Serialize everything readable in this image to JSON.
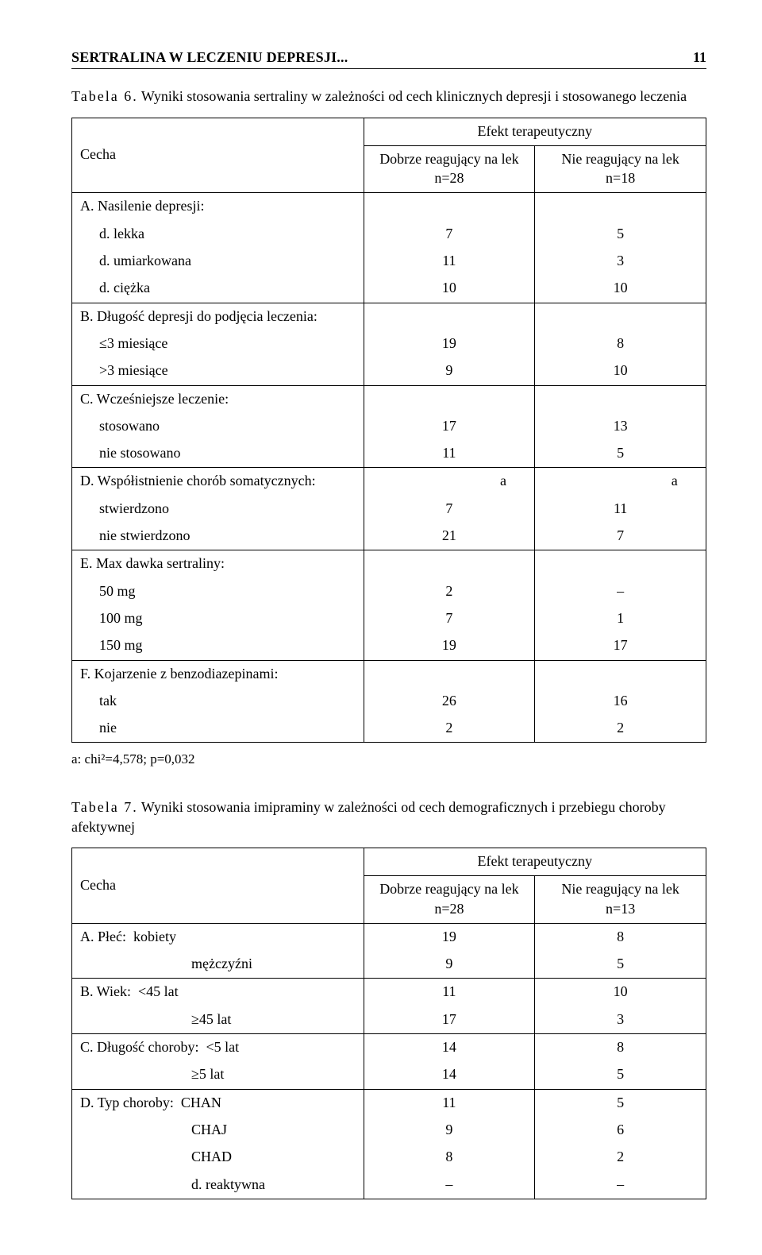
{
  "page": {
    "running_title": "SERTRALINA W LECZENIU DEPRESJI...",
    "number": "11"
  },
  "table6": {
    "label": "Tabela 6.",
    "caption": "Wyniki stosowania sertraliny w zależności od cech klinicznych depresji i stosowanego leczenia",
    "header_effect": "Efekt terapeutyczny",
    "col_feature": "Cecha",
    "col_good": "Dobrze reagujący na lek",
    "col_good_n": "n=28",
    "col_bad": "Nie reagujący na lek",
    "col_bad_n": "n=18",
    "sections": [
      {
        "title": "A. Nasilenie depresji:",
        "rows": [
          {
            "label": "d. lekka",
            "good": "7",
            "bad": "5"
          },
          {
            "label": "d. umiarkowana",
            "good": "11",
            "bad": "3"
          },
          {
            "label": "d. ciężka",
            "good": "10",
            "bad": "10"
          }
        ]
      },
      {
        "title": "B. Długość depresji do podjęcia leczenia:",
        "rows": [
          {
            "label": "≤3 miesiące",
            "good": "19",
            "bad": "8"
          },
          {
            "label": ">3 miesiące",
            "good": "9",
            "bad": "10"
          }
        ]
      },
      {
        "title": "C. Wcześniejsze leczenie:",
        "rows": [
          {
            "label": "stosowano",
            "good": "17",
            "bad": "13"
          },
          {
            "label": "nie stosowano",
            "good": "11",
            "bad": "5"
          }
        ]
      },
      {
        "title": "D. Współistnienie chorób somatycznych:",
        "title_good": "a",
        "title_bad": "a",
        "rows": [
          {
            "label": "stwierdzono",
            "good": "7",
            "bad": "11"
          },
          {
            "label": "nie stwierdzono",
            "good": "21",
            "bad": "7"
          }
        ]
      },
      {
        "title": "E. Max dawka sertraliny:",
        "rows": [
          {
            "label": "50 mg",
            "good": "2",
            "bad": "–"
          },
          {
            "label": "100 mg",
            "good": "7",
            "bad": "1"
          },
          {
            "label": "150 mg",
            "good": "19",
            "bad": "17"
          }
        ]
      },
      {
        "title": "F. Kojarzenie z benzodiazepinami:",
        "rows": [
          {
            "label": "tak",
            "good": "26",
            "bad": "16"
          },
          {
            "label": "nie",
            "good": "2",
            "bad": "2"
          }
        ]
      }
    ],
    "footnote": "a: chi²=4,578; p=0,032"
  },
  "table7": {
    "label": "Tabela 7.",
    "caption": "Wyniki stosowania imipraminy w zależności od cech demograficznych i przebiegu choroby afektywnej",
    "header_effect": "Efekt terapeutyczny",
    "col_feature": "Cecha",
    "col_good": "Dobrze reagujący na lek",
    "col_good_n": "n=28",
    "col_bad": "Nie reagujący na lek",
    "col_bad_n": "n=13",
    "sections": [
      {
        "title_inline": "A. Płeć:",
        "rows": [
          {
            "label": "kobiety",
            "good": "19",
            "bad": "8",
            "inline_with_title": true
          },
          {
            "label": "mężczyźni",
            "good": "9",
            "bad": "5"
          }
        ]
      },
      {
        "title_inline": "B. Wiek:",
        "rows": [
          {
            "label": "<45 lat",
            "good": "11",
            "bad": "10",
            "inline_with_title": true
          },
          {
            "label": "≥45 lat",
            "good": "17",
            "bad": "3"
          }
        ]
      },
      {
        "title_inline": "C. Długość choroby:",
        "rows": [
          {
            "label": "<5 lat",
            "good": "14",
            "bad": "8",
            "inline_with_title": true
          },
          {
            "label": "≥5 lat",
            "good": "14",
            "bad": "5"
          }
        ]
      },
      {
        "title_inline": "D. Typ choroby:",
        "rows": [
          {
            "label": "CHAN",
            "good": "11",
            "bad": "5",
            "inline_with_title": true
          },
          {
            "label": "CHAJ",
            "good": "9",
            "bad": "6"
          },
          {
            "label": "CHAD",
            "good": "8",
            "bad": "2"
          },
          {
            "label": "d. reaktywna",
            "good": "–",
            "bad": "–"
          }
        ]
      }
    ]
  }
}
